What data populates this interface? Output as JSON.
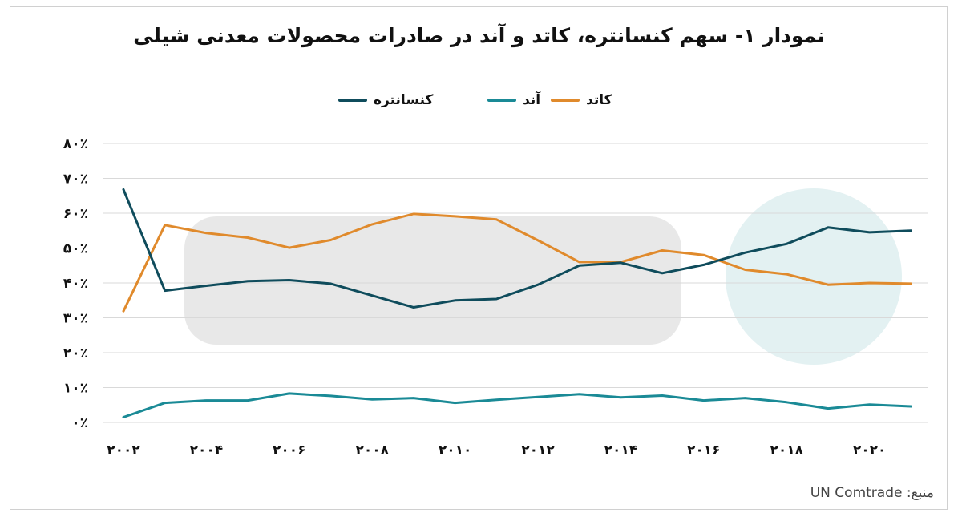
{
  "chart_data": {
    "type": "line",
    "title": "نمودار ۱- سهم کنسانتره، کاتد و آند در صادرات محصولات معدنی شیلی",
    "x": [
      2002,
      2003,
      2004,
      2005,
      2006,
      2007,
      2008,
      2009,
      2010,
      2011,
      2012,
      2013,
      2014,
      2015,
      2016,
      2017,
      2018,
      2019,
      2020,
      2021
    ],
    "x_tick_values": [
      2002,
      2004,
      2006,
      2008,
      2010,
      2012,
      2014,
      2016,
      2018,
      2020
    ],
    "x_tick_labels": [
      "۲۰۰۲",
      "۲۰۰۴",
      "۲۰۰۶",
      "۲۰۰۸",
      "۲۰۱۰",
      "۲۰۱۲",
      "۲۰۱۴",
      "۲۰۱۶",
      "۲۰۱۸",
      "۲۰۲۰"
    ],
    "ylim": [
      0,
      80
    ],
    "y_tick_values": [
      0,
      10,
      20,
      30,
      40,
      50,
      60,
      70,
      80
    ],
    "y_tick_labels": [
      "۰٪",
      "۱۰٪",
      "۲۰٪",
      "۳۰٪",
      "۴۰٪",
      "۵۰٪",
      "۶۰٪",
      "۷۰٪",
      "۸۰٪"
    ],
    "grid": true,
    "legend_position": "top",
    "series": [
      {
        "name": "کنسانتره",
        "color": "#0f4c5c",
        "values": [
          66.8,
          37.8,
          39.2,
          40.5,
          40.8,
          39.8,
          36.4,
          33.0,
          35.0,
          35.4,
          39.5,
          45.0,
          45.8,
          42.8,
          45.2,
          48.7,
          51.2,
          55.9,
          54.5,
          55.0
        ]
      },
      {
        "name": "آند",
        "color": "#1a8a96",
        "values": [
          1.5,
          5.6,
          6.3,
          6.3,
          8.3,
          7.6,
          6.6,
          7.0,
          5.6,
          6.5,
          7.3,
          8.1,
          7.2,
          7.7,
          6.3,
          7.0,
          5.8,
          4.0,
          5.1,
          4.6
        ]
      },
      {
        "name": "کاتد",
        "color": "#e08a2c",
        "values": [
          31.9,
          56.6,
          54.3,
          53.0,
          50.1,
          52.3,
          56.8,
          59.8,
          59.1,
          58.2,
          52.2,
          46.0,
          46.0,
          49.3,
          48.0,
          43.8,
          42.5,
          39.5,
          40.0,
          39.8
        ]
      }
    ],
    "legend_order": [
      "کنسانتره",
      "آند",
      "کاتد"
    ]
  },
  "source_text": "منبع: UN Comtrade"
}
